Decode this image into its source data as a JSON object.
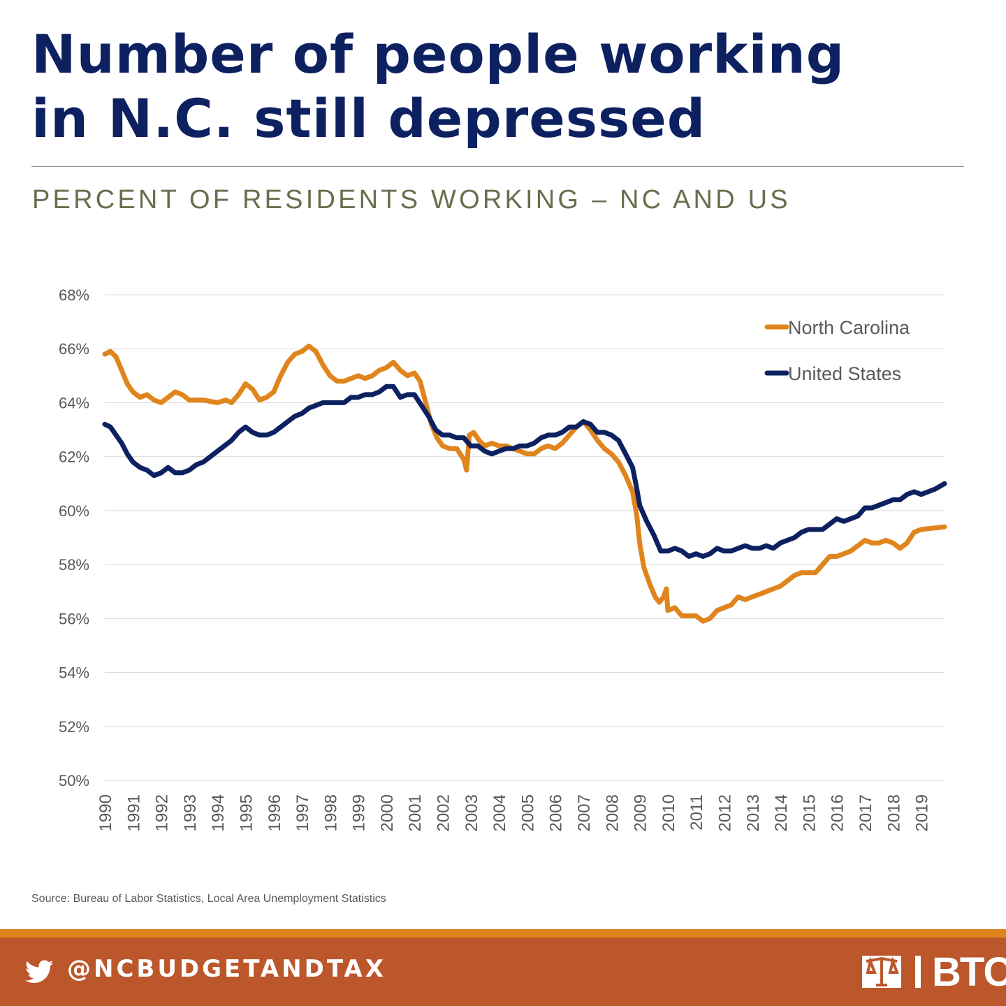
{
  "header": {
    "title_line1": "Number of people working",
    "title_line2": "in N.C. still depressed",
    "subtitle": "PERCENT OF RESIDENTS WORKING – NC AND US"
  },
  "source": "Source: Bureau of Labor Statistics, Local Area Unemployment Statistics",
  "footer": {
    "handle": "@NCBUDGETANDTAX",
    "logo_text": "BTC",
    "accent_color": "#e0851d",
    "band_color": "#bb572b",
    "icon": "twitter-icon"
  },
  "chart_data": {
    "type": "line",
    "ylim": [
      50,
      68
    ],
    "yticks": [
      "50%",
      "52%",
      "54%",
      "56%",
      "58%",
      "60%",
      "62%",
      "64%",
      "66%",
      "68%"
    ],
    "xticks": [
      "1990",
      "1991",
      "1992",
      "1993",
      "1994",
      "1995",
      "1996",
      "1997",
      "1998",
      "1999",
      "2000",
      "2001",
      "2002",
      "2003",
      "2004",
      "2005",
      "2006",
      "2007",
      "2008",
      "2009",
      "2010",
      "2011",
      "2012",
      "2013",
      "2014",
      "2015",
      "2016",
      "2017",
      "2018",
      "2019"
    ],
    "xlim": [
      1990,
      2019.83
    ],
    "legend": "top-right",
    "grid": true,
    "series": [
      {
        "name": "North Carolina",
        "color": "#e0851d",
        "points": [
          [
            1990.0,
            65.8
          ],
          [
            1990.2,
            65.9
          ],
          [
            1990.4,
            65.7
          ],
          [
            1990.6,
            65.2
          ],
          [
            1990.8,
            64.7
          ],
          [
            1991.0,
            64.4
          ],
          [
            1991.25,
            64.2
          ],
          [
            1991.5,
            64.3
          ],
          [
            1991.75,
            64.1
          ],
          [
            1992.0,
            64.0
          ],
          [
            1992.25,
            64.2
          ],
          [
            1992.5,
            64.4
          ],
          [
            1992.75,
            64.3
          ],
          [
            1993.0,
            64.1
          ],
          [
            1993.5,
            64.1
          ],
          [
            1994.0,
            64.0
          ],
          [
            1994.3,
            64.1
          ],
          [
            1994.5,
            64.0
          ],
          [
            1994.75,
            64.3
          ],
          [
            1995.0,
            64.7
          ],
          [
            1995.25,
            64.5
          ],
          [
            1995.5,
            64.1
          ],
          [
            1995.75,
            64.2
          ],
          [
            1996.0,
            64.4
          ],
          [
            1996.25,
            65.0
          ],
          [
            1996.5,
            65.5
          ],
          [
            1996.75,
            65.8
          ],
          [
            1997.0,
            65.9
          ],
          [
            1997.25,
            66.1
          ],
          [
            1997.5,
            65.9
          ],
          [
            1997.75,
            65.4
          ],
          [
            1998.0,
            65.0
          ],
          [
            1998.25,
            64.8
          ],
          [
            1998.5,
            64.8
          ],
          [
            1998.75,
            64.9
          ],
          [
            1999.0,
            65.0
          ],
          [
            1999.25,
            64.9
          ],
          [
            1999.5,
            65.0
          ],
          [
            1999.75,
            65.2
          ],
          [
            2000.0,
            65.3
          ],
          [
            2000.25,
            65.5
          ],
          [
            2000.5,
            65.2
          ],
          [
            2000.75,
            65.0
          ],
          [
            2001.0,
            65.1
          ],
          [
            2001.2,
            64.8
          ],
          [
            2001.4,
            64.0
          ],
          [
            2001.6,
            63.2
          ],
          [
            2001.8,
            62.7
          ],
          [
            2002.0,
            62.4
          ],
          [
            2002.25,
            62.3
          ],
          [
            2002.5,
            62.3
          ],
          [
            2002.75,
            61.9
          ],
          [
            2002.85,
            61.5
          ],
          [
            2002.95,
            62.8
          ],
          [
            2003.1,
            62.9
          ],
          [
            2003.3,
            62.6
          ],
          [
            2003.5,
            62.4
          ],
          [
            2003.75,
            62.5
          ],
          [
            2004.0,
            62.4
          ],
          [
            2004.25,
            62.4
          ],
          [
            2004.5,
            62.3
          ],
          [
            2004.75,
            62.2
          ],
          [
            2005.0,
            62.1
          ],
          [
            2005.25,
            62.1
          ],
          [
            2005.5,
            62.3
          ],
          [
            2005.75,
            62.4
          ],
          [
            2006.0,
            62.3
          ],
          [
            2006.25,
            62.5
          ],
          [
            2006.5,
            62.8
          ],
          [
            2006.75,
            63.1
          ],
          [
            2007.0,
            63.3
          ],
          [
            2007.25,
            63.0
          ],
          [
            2007.5,
            62.6
          ],
          [
            2007.75,
            62.3
          ],
          [
            2008.0,
            62.1
          ],
          [
            2008.25,
            61.8
          ],
          [
            2008.5,
            61.3
          ],
          [
            2008.75,
            60.7
          ],
          [
            2008.9,
            59.8
          ],
          [
            2009.0,
            58.8
          ],
          [
            2009.15,
            57.9
          ],
          [
            2009.35,
            57.3
          ],
          [
            2009.55,
            56.8
          ],
          [
            2009.7,
            56.6
          ],
          [
            2009.85,
            56.8
          ],
          [
            2009.95,
            57.1
          ],
          [
            2010.0,
            56.3
          ],
          [
            2010.25,
            56.4
          ],
          [
            2010.5,
            56.1
          ],
          [
            2010.75,
            56.1
          ],
          [
            2011.0,
            56.1
          ],
          [
            2011.25,
            55.9
          ],
          [
            2011.5,
            56.0
          ],
          [
            2011.75,
            56.3
          ],
          [
            2012.0,
            56.4
          ],
          [
            2012.25,
            56.5
          ],
          [
            2012.5,
            56.8
          ],
          [
            2012.75,
            56.7
          ],
          [
            2013.0,
            56.8
          ],
          [
            2013.25,
            56.9
          ],
          [
            2013.5,
            57.0
          ],
          [
            2013.75,
            57.1
          ],
          [
            2014.0,
            57.2
          ],
          [
            2014.25,
            57.4
          ],
          [
            2014.5,
            57.6
          ],
          [
            2014.75,
            57.7
          ],
          [
            2015.0,
            57.7
          ],
          [
            2015.25,
            57.7
          ],
          [
            2015.5,
            58.0
          ],
          [
            2015.75,
            58.3
          ],
          [
            2016.0,
            58.3
          ],
          [
            2016.25,
            58.4
          ],
          [
            2016.5,
            58.5
          ],
          [
            2016.75,
            58.7
          ],
          [
            2017.0,
            58.9
          ],
          [
            2017.25,
            58.8
          ],
          [
            2017.5,
            58.8
          ],
          [
            2017.75,
            58.9
          ],
          [
            2018.0,
            58.8
          ],
          [
            2018.25,
            58.6
          ],
          [
            2018.5,
            58.8
          ],
          [
            2018.75,
            59.2
          ],
          [
            2019.0,
            59.3
          ],
          [
            2019.83,
            59.4
          ]
        ]
      },
      {
        "name": "United States",
        "color": "#0d2161",
        "points": [
          [
            1990.0,
            63.2
          ],
          [
            1990.2,
            63.1
          ],
          [
            1990.4,
            62.8
          ],
          [
            1990.6,
            62.5
          ],
          [
            1990.8,
            62.1
          ],
          [
            1991.0,
            61.8
          ],
          [
            1991.25,
            61.6
          ],
          [
            1991.5,
            61.5
          ],
          [
            1991.75,
            61.3
          ],
          [
            1992.0,
            61.4
          ],
          [
            1992.25,
            61.6
          ],
          [
            1992.5,
            61.4
          ],
          [
            1992.75,
            61.4
          ],
          [
            1993.0,
            61.5
          ],
          [
            1993.25,
            61.7
          ],
          [
            1993.5,
            61.8
          ],
          [
            1993.75,
            62.0
          ],
          [
            1994.0,
            62.2
          ],
          [
            1994.25,
            62.4
          ],
          [
            1994.5,
            62.6
          ],
          [
            1994.75,
            62.9
          ],
          [
            1995.0,
            63.1
          ],
          [
            1995.25,
            62.9
          ],
          [
            1995.5,
            62.8
          ],
          [
            1995.75,
            62.8
          ],
          [
            1996.0,
            62.9
          ],
          [
            1996.25,
            63.1
          ],
          [
            1996.5,
            63.3
          ],
          [
            1996.75,
            63.5
          ],
          [
            1997.0,
            63.6
          ],
          [
            1997.25,
            63.8
          ],
          [
            1997.5,
            63.9
          ],
          [
            1997.75,
            64.0
          ],
          [
            1998.0,
            64.0
          ],
          [
            1998.25,
            64.0
          ],
          [
            1998.5,
            64.0
          ],
          [
            1998.75,
            64.2
          ],
          [
            1999.0,
            64.2
          ],
          [
            1999.25,
            64.3
          ],
          [
            1999.5,
            64.3
          ],
          [
            1999.75,
            64.4
          ],
          [
            2000.0,
            64.6
          ],
          [
            2000.25,
            64.6
          ],
          [
            2000.5,
            64.2
          ],
          [
            2000.75,
            64.3
          ],
          [
            2001.0,
            64.3
          ],
          [
            2001.25,
            63.9
          ],
          [
            2001.5,
            63.5
          ],
          [
            2001.75,
            63.0
          ],
          [
            2002.0,
            62.8
          ],
          [
            2002.25,
            62.8
          ],
          [
            2002.5,
            62.7
          ],
          [
            2002.75,
            62.7
          ],
          [
            2003.0,
            62.4
          ],
          [
            2003.25,
            62.4
          ],
          [
            2003.5,
            62.2
          ],
          [
            2003.75,
            62.1
          ],
          [
            2004.0,
            62.2
          ],
          [
            2004.25,
            62.3
          ],
          [
            2004.5,
            62.3
          ],
          [
            2004.75,
            62.4
          ],
          [
            2005.0,
            62.4
          ],
          [
            2005.25,
            62.5
          ],
          [
            2005.5,
            62.7
          ],
          [
            2005.75,
            62.8
          ],
          [
            2006.0,
            62.8
          ],
          [
            2006.25,
            62.9
          ],
          [
            2006.5,
            63.1
          ],
          [
            2006.75,
            63.1
          ],
          [
            2007.0,
            63.3
          ],
          [
            2007.25,
            63.2
          ],
          [
            2007.5,
            62.9
          ],
          [
            2007.75,
            62.9
          ],
          [
            2008.0,
            62.8
          ],
          [
            2008.25,
            62.6
          ],
          [
            2008.5,
            62.1
          ],
          [
            2008.75,
            61.6
          ],
          [
            2008.9,
            60.8
          ],
          [
            2009.0,
            60.2
          ],
          [
            2009.25,
            59.6
          ],
          [
            2009.5,
            59.1
          ],
          [
            2009.75,
            58.5
          ],
          [
            2010.0,
            58.5
          ],
          [
            2010.25,
            58.6
          ],
          [
            2010.5,
            58.5
          ],
          [
            2010.75,
            58.3
          ],
          [
            2011.0,
            58.4
          ],
          [
            2011.25,
            58.3
          ],
          [
            2011.5,
            58.4
          ],
          [
            2011.75,
            58.6
          ],
          [
            2012.0,
            58.5
          ],
          [
            2012.25,
            58.5
          ],
          [
            2012.5,
            58.6
          ],
          [
            2012.75,
            58.7
          ],
          [
            2013.0,
            58.6
          ],
          [
            2013.25,
            58.6
          ],
          [
            2013.5,
            58.7
          ],
          [
            2013.75,
            58.6
          ],
          [
            2014.0,
            58.8
          ],
          [
            2014.25,
            58.9
          ],
          [
            2014.5,
            59.0
          ],
          [
            2014.75,
            59.2
          ],
          [
            2015.0,
            59.3
          ],
          [
            2015.25,
            59.3
          ],
          [
            2015.5,
            59.3
          ],
          [
            2015.75,
            59.5
          ],
          [
            2016.0,
            59.7
          ],
          [
            2016.25,
            59.6
          ],
          [
            2016.5,
            59.7
          ],
          [
            2016.75,
            59.8
          ],
          [
            2017.0,
            60.1
          ],
          [
            2017.25,
            60.1
          ],
          [
            2017.5,
            60.2
          ],
          [
            2017.75,
            60.3
          ],
          [
            2018.0,
            60.4
          ],
          [
            2018.25,
            60.4
          ],
          [
            2018.5,
            60.6
          ],
          [
            2018.75,
            60.7
          ],
          [
            2019.0,
            60.6
          ],
          [
            2019.25,
            60.7
          ],
          [
            2019.5,
            60.8
          ],
          [
            2019.83,
            61.0
          ]
        ]
      }
    ]
  }
}
